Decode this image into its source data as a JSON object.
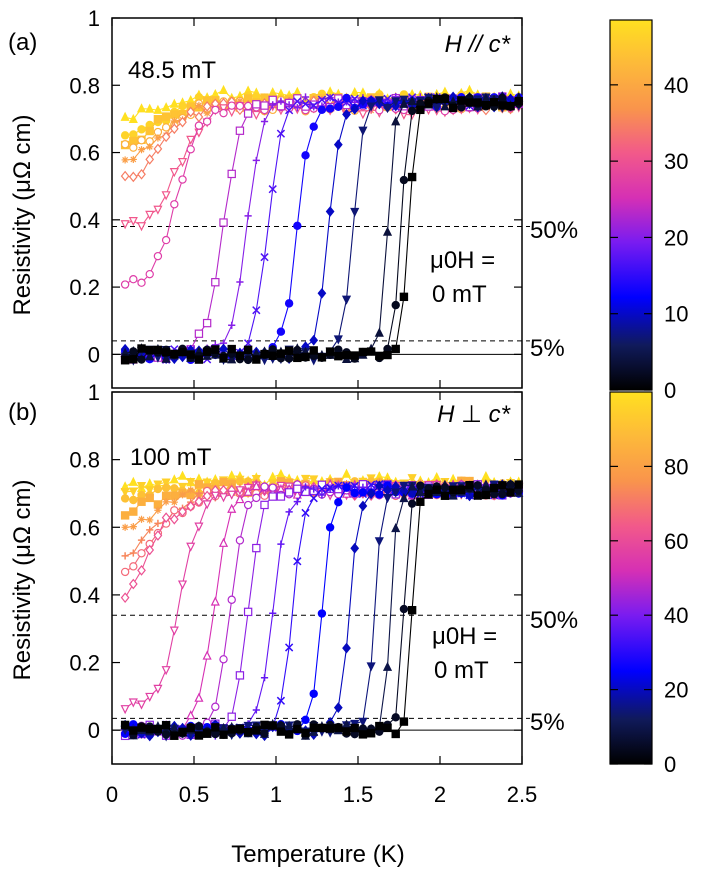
{
  "chart_data": [
    {
      "type": "line",
      "panel": "(a)",
      "orientation_label": "H // c*",
      "max_field_label": "48.5 mT",
      "field_label_line1": "μ0H =",
      "field_label_line2": "0 mT",
      "threshold_50_label": "50%",
      "threshold_5_label": "5%",
      "threshold_50": 0.38,
      "threshold_5": 0.04,
      "ylabel": "Resistivity (μΩ cm)",
      "xlabel": "",
      "xlim": [
        0,
        2.5
      ],
      "ylim": [
        -0.1,
        1.0
      ],
      "yticks": [
        "0",
        "0.2",
        "0.4",
        "0.6",
        "0.8",
        "1"
      ],
      "colorbar": {
        "ticks": [
          "0",
          "10",
          "20",
          "30",
          "40"
        ],
        "max": 48.5,
        "unit": "mT"
      },
      "series": [
        {
          "field": 0,
          "marker": "square",
          "filled": true,
          "tc": 1.81,
          "w": 0.05,
          "low": 0.0,
          "high": 0.75
        },
        {
          "field": 2,
          "marker": "circle",
          "filled": true,
          "tc": 1.76,
          "w": 0.05,
          "low": 0.0,
          "high": 0.75
        },
        {
          "field": 4,
          "marker": "triangle",
          "filled": true,
          "tc": 1.68,
          "w": 0.05,
          "low": 0.0,
          "high": 0.75
        },
        {
          "field": 7,
          "marker": "triangle-down",
          "filled": true,
          "tc": 1.47,
          "w": 0.07,
          "low": 0.0,
          "high": 0.75
        },
        {
          "field": 10,
          "marker": "diamond",
          "filled": true,
          "tc": 1.32,
          "w": 0.08,
          "low": 0.0,
          "high": 0.75
        },
        {
          "field": 13,
          "marker": "circle",
          "filled": true,
          "tc": 1.13,
          "w": 0.09,
          "low": 0.0,
          "high": 0.75
        },
        {
          "field": 16,
          "marker": "cross",
          "filled": false,
          "tc": 0.95,
          "w": 0.1,
          "low": 0.0,
          "high": 0.75
        },
        {
          "field": 19,
          "marker": "plus",
          "filled": false,
          "tc": 0.82,
          "w": 0.1,
          "low": 0.0,
          "high": 0.75
        },
        {
          "field": 22,
          "marker": "square",
          "filled": false,
          "tc": 0.68,
          "w": 0.12,
          "low": 0.0,
          "high": 0.75
        },
        {
          "field": 26,
          "marker": "circle",
          "filled": false,
          "tc": 0.4,
          "w": 0.15,
          "low": 0.2,
          "high": 0.74
        },
        {
          "field": 30,
          "marker": "triangle-down",
          "filled": false,
          "tc": 0.4,
          "w": 0.18,
          "low": 0.37,
          "high": 0.73
        },
        {
          "field": 34,
          "marker": "diamond",
          "filled": false,
          "tc": 0.3,
          "w": 0.2,
          "low": 0.5,
          "high": 0.74
        },
        {
          "field": 38,
          "marker": "asterisk",
          "filled": false,
          "tc": 0.3,
          "w": 0.2,
          "low": 0.56,
          "high": 0.74
        },
        {
          "field": 41,
          "marker": "circle",
          "filled": false,
          "tc": 0.3,
          "w": 0.2,
          "low": 0.6,
          "high": 0.74
        },
        {
          "field": 44,
          "marker": "square",
          "filled": true,
          "tc": 0.3,
          "w": 0.2,
          "low": 0.63,
          "high": 0.75
        },
        {
          "field": 46.5,
          "marker": "circle",
          "filled": true,
          "tc": 0.3,
          "w": 0.2,
          "low": 0.64,
          "high": 0.76
        },
        {
          "field": 48.5,
          "marker": "triangle",
          "filled": true,
          "tc": 0.3,
          "w": 0.2,
          "low": 0.7,
          "high": 0.77
        }
      ]
    },
    {
      "type": "line",
      "panel": "(b)",
      "orientation_label": "H ⊥ c*",
      "max_field_label": "100 mT",
      "field_label_line1": "μ0H =",
      "field_label_line2": "0 mT",
      "threshold_50_label": "50%",
      "threshold_5_label": "5%",
      "threshold_50": 0.34,
      "threshold_5": 0.035,
      "ylabel": "Resistivity (μΩ cm)",
      "xlabel": "Temperature (K)",
      "xlim": [
        0,
        2.5
      ],
      "ylim": [
        -0.1,
        1.0
      ],
      "xticks": [
        "0",
        "0.5",
        "1",
        "1.5",
        "2",
        "2.5"
      ],
      "yticks": [
        "0",
        "0.2",
        "0.4",
        "0.6",
        "0.8",
        "1"
      ],
      "colorbar": {
        "ticks": [
          "0",
          "20",
          "40",
          "60",
          "80"
        ],
        "max": 100,
        "unit": "mT"
      },
      "series": [
        {
          "field": 0,
          "marker": "square",
          "filled": true,
          "tc": 1.83,
          "w": 0.04,
          "low": 0.0,
          "high": 0.71
        },
        {
          "field": 5,
          "marker": "circle",
          "filled": true,
          "tc": 1.78,
          "w": 0.04,
          "low": 0.0,
          "high": 0.71
        },
        {
          "field": 10,
          "marker": "triangle",
          "filled": true,
          "tc": 1.7,
          "w": 0.04,
          "low": 0.0,
          "high": 0.71
        },
        {
          "field": 15,
          "marker": "triangle-down",
          "filled": true,
          "tc": 1.6,
          "w": 0.05,
          "low": 0.0,
          "high": 0.71
        },
        {
          "field": 20,
          "marker": "diamond",
          "filled": true,
          "tc": 1.45,
          "w": 0.06,
          "low": 0.0,
          "high": 0.71
        },
        {
          "field": 25,
          "marker": "circle",
          "filled": true,
          "tc": 1.28,
          "w": 0.07,
          "low": 0.0,
          "high": 0.71
        },
        {
          "field": 30,
          "marker": "cross",
          "filled": false,
          "tc": 1.1,
          "w": 0.08,
          "low": 0.0,
          "high": 0.71
        },
        {
          "field": 35,
          "marker": "plus",
          "filled": false,
          "tc": 0.98,
          "w": 0.09,
          "low": 0.0,
          "high": 0.71
        },
        {
          "field": 40,
          "marker": "square",
          "filled": false,
          "tc": 0.83,
          "w": 0.09,
          "low": 0.0,
          "high": 0.71
        },
        {
          "field": 45,
          "marker": "circle",
          "filled": false,
          "tc": 0.72,
          "w": 0.1,
          "low": 0.0,
          "high": 0.71
        },
        {
          "field": 50,
          "marker": "triangle",
          "filled": false,
          "tc": 0.62,
          "w": 0.11,
          "low": 0.0,
          "high": 0.71
        },
        {
          "field": 55,
          "marker": "triangle-down",
          "filled": false,
          "tc": 0.42,
          "w": 0.14,
          "low": 0.07,
          "high": 0.71
        },
        {
          "field": 60,
          "marker": "diamond",
          "filled": false,
          "tc": 0.2,
          "w": 0.25,
          "low": 0.3,
          "high": 0.71
        },
        {
          "field": 66,
          "marker": "circle",
          "filled": false,
          "tc": 0.25,
          "w": 0.28,
          "low": 0.42,
          "high": 0.71
        },
        {
          "field": 72,
          "marker": "plus",
          "filled": false,
          "tc": 0.25,
          "w": 0.28,
          "low": 0.47,
          "high": 0.71
        },
        {
          "field": 78,
          "marker": "asterisk",
          "filled": false,
          "tc": 0.25,
          "w": 0.28,
          "low": 0.55,
          "high": 0.72
        },
        {
          "field": 84,
          "marker": "square",
          "filled": true,
          "tc": 0.2,
          "w": 0.3,
          "low": 0.62,
          "high": 0.72
        },
        {
          "field": 90,
          "marker": "circle",
          "filled": true,
          "tc": 0.2,
          "w": 0.3,
          "low": 0.67,
          "high": 0.72
        },
        {
          "field": 95,
          "marker": "triangle-down",
          "filled": true,
          "tc": 0.2,
          "w": 0.3,
          "low": 0.69,
          "high": 0.73
        },
        {
          "field": 100,
          "marker": "triangle",
          "filled": true,
          "tc": 0.2,
          "w": 0.3,
          "low": 0.72,
          "high": 0.74
        }
      ]
    }
  ],
  "colors": {
    "colormap": [
      "#000000",
      "#101a5a",
      "#0000ff",
      "#7a1cf0",
      "#d630b4",
      "#f2598a",
      "#f9944c",
      "#fdb93a",
      "#ffe020"
    ]
  }
}
